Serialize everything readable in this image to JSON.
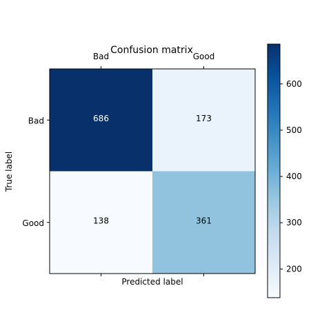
{
  "chart_data": {
    "type": "heatmap",
    "title": "Confusion matrix",
    "xlabel": "Predicted label",
    "ylabel": "True label",
    "x_categories": [
      "Bad",
      "Good"
    ],
    "y_categories": [
      "Bad",
      "Good"
    ],
    "values": [
      [
        686,
        173
      ],
      [
        138,
        361
      ]
    ],
    "colormap": "Blues",
    "colorbar": {
      "ticks": [
        200,
        300,
        400,
        500,
        600
      ],
      "range": [
        138,
        686
      ]
    },
    "x_ticks_position": "top",
    "grid": false
  }
}
